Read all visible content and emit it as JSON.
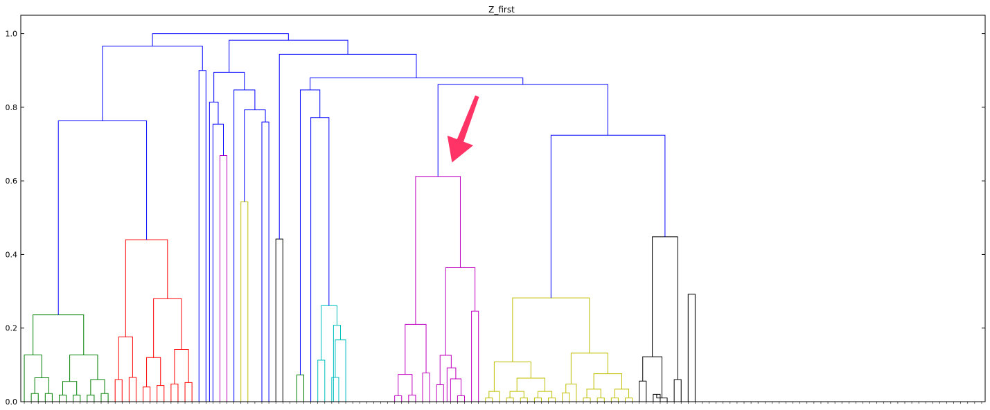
{
  "chart_data": {
    "type": "dendrogram",
    "title": "Z_first",
    "xlabel": "",
    "ylabel": "",
    "ylim": [
      0,
      1.05
    ],
    "yticks": [
      "0.0",
      "0.2",
      "0.4",
      "0.6",
      "0.8",
      "1.0"
    ],
    "grid": false,
    "leaf_count": 138,
    "colors": {
      "blue": "#0000ff",
      "green": "#008000",
      "red": "#ff0000",
      "magenta": "#bf00bf",
      "yellow": "#bfbf00",
      "cyan": "#00bfbf",
      "black": "#000000",
      "arrow": "#ff3366"
    },
    "links": [
      {
        "x": [
          1,
          2
        ],
        "h": [
          0,
          0.022,
          0
        ],
        "c": "green"
      },
      {
        "x": [
          3,
          4
        ],
        "h": [
          0,
          0.022,
          0
        ],
        "c": "green"
      },
      {
        "x": [
          1.5,
          3.5
        ],
        "h": [
          0.022,
          0.065,
          0.022
        ],
        "c": "green"
      },
      {
        "x": [
          0,
          2.5
        ],
        "h": [
          0,
          0.127,
          0.065
        ],
        "c": "green"
      },
      {
        "x": [
          5,
          6
        ],
        "h": [
          0,
          0.018,
          0
        ],
        "c": "green"
      },
      {
        "x": [
          7,
          8
        ],
        "h": [
          0,
          0.018,
          0
        ],
        "c": "green"
      },
      {
        "x": [
          5.5,
          7.5
        ],
        "h": [
          0.018,
          0.055,
          0.018
        ],
        "c": "green"
      },
      {
        "x": [
          9,
          10
        ],
        "h": [
          0,
          0.018,
          0
        ],
        "c": "green"
      },
      {
        "x": [
          11,
          12
        ],
        "h": [
          0,
          0.022,
          0
        ],
        "c": "green"
      },
      {
        "x": [
          9.5,
          11.5
        ],
        "h": [
          0.018,
          0.06,
          0.022
        ],
        "c": "green"
      },
      {
        "x": [
          6.5,
          10.5
        ],
        "h": [
          0.055,
          0.127,
          0.06
        ],
        "c": "green"
      },
      {
        "x": [
          1.25,
          8.5
        ],
        "h": [
          0.127,
          0.236,
          0.127
        ],
        "c": "green"
      },
      {
        "x": [
          13,
          14
        ],
        "h": [
          0,
          0.06,
          0
        ],
        "c": "red"
      },
      {
        "x": [
          15,
          16
        ],
        "h": [
          0,
          0.066,
          0
        ],
        "c": "red"
      },
      {
        "x": [
          13.5,
          15.5
        ],
        "h": [
          0.06,
          0.176,
          0.066
        ],
        "c": "red"
      },
      {
        "x": [
          17,
          18
        ],
        "h": [
          0,
          0.04,
          0
        ],
        "c": "red"
      },
      {
        "x": [
          19,
          20
        ],
        "h": [
          0,
          0.044,
          0
        ],
        "c": "red"
      },
      {
        "x": [
          17.5,
          19.5
        ],
        "h": [
          0.04,
          0.12,
          0.044
        ],
        "c": "red"
      },
      {
        "x": [
          21,
          22
        ],
        "h": [
          0,
          0.048,
          0
        ],
        "c": "red"
      },
      {
        "x": [
          23,
          24
        ],
        "h": [
          0,
          0.052,
          0
        ],
        "c": "red"
      },
      {
        "x": [
          21.5,
          23.5
        ],
        "h": [
          0.048,
          0.142,
          0.052
        ],
        "c": "red"
      },
      {
        "x": [
          18.5,
          22.5
        ],
        "h": [
          0.12,
          0.28,
          0.142
        ],
        "c": "red"
      },
      {
        "x": [
          14.5,
          20.5
        ],
        "h": [
          0.176,
          0.44,
          0.28
        ],
        "c": "red"
      },
      {
        "x": [
          4.875,
          17.5
        ],
        "h": [
          0.236,
          0.763,
          0.44
        ],
        "c": "blue"
      },
      {
        "x": [
          25,
          26
        ],
        "h": [
          0,
          0.9,
          0
        ],
        "c": "blue"
      },
      {
        "x": [
          11.1875,
          25.5
        ],
        "h": [
          0.763,
          0.966,
          0.9
        ],
        "c": "blue"
      },
      {
        "x": [
          28,
          29
        ],
        "h": [
          0,
          0.669,
          0
        ],
        "c": "magenta"
      },
      {
        "x": [
          27,
          28.5
        ],
        "h": [
          0,
          0.754,
          0.669
        ],
        "c": "blue"
      },
      {
        "x": [
          26.5,
          27.75
        ],
        "h": [
          0,
          0.814,
          0.754
        ],
        "c": "blue"
      },
      {
        "x": [
          31,
          32
        ],
        "h": [
          0,
          0.543,
          0
        ],
        "c": "yellow"
      },
      {
        "x": [
          34,
          35
        ],
        "h": [
          0,
          0.76,
          0
        ],
        "c": "blue"
      },
      {
        "x": [
          31.5,
          34.5
        ],
        "h": [
          0.543,
          0.793,
          0.76
        ],
        "c": "blue"
      },
      {
        "x": [
          30,
          33
        ],
        "h": [
          0,
          0.847,
          0.793
        ],
        "c": "blue"
      },
      {
        "x": [
          27.125,
          31.5
        ],
        "h": [
          0.814,
          0.895,
          0.847
        ],
        "c": "blue"
      },
      {
        "x": [
          36,
          37
        ],
        "h": [
          0,
          0.442,
          0
        ],
        "c": "black"
      },
      {
        "x": [
          39,
          40
        ],
        "h": [
          0,
          0.073,
          0
        ],
        "c": "green"
      },
      {
        "x": [
          42,
          43
        ],
        "h": [
          0,
          0.113,
          0
        ],
        "c": "cyan"
      },
      {
        "x": [
          44,
          45
        ],
        "h": [
          0,
          0.066,
          0
        ],
        "c": "cyan"
      },
      {
        "x": [
          46,
          44.5
        ],
        "h": [
          0,
          0.168,
          0.066
        ],
        "c": "cyan"
      },
      {
        "x": [
          44.25,
          45.25
        ],
        "h": [
          0,
          0.208,
          0.168
        ],
        "c": "cyan"
      },
      {
        "x": [
          42.5,
          44.75
        ],
        "h": [
          0.113,
          0.261,
          0.208
        ],
        "c": "cyan"
      },
      {
        "x": [
          41,
          43.6
        ],
        "h": [
          0,
          0.772,
          0.261
        ],
        "c": "blue"
      },
      {
        "x": [
          39.5,
          42.3
        ],
        "h": [
          0.073,
          0.847,
          0.772
        ],
        "c": "blue"
      },
      {
        "x": [
          53,
          54
        ],
        "h": [
          0,
          0.016,
          0
        ],
        "c": "magenta"
      },
      {
        "x": [
          55,
          56
        ],
        "h": [
          0,
          0.018,
          0
        ],
        "c": "magenta"
      },
      {
        "x": [
          53.5,
          55.5
        ],
        "h": [
          0.016,
          0.074,
          0.018
        ],
        "c": "magenta"
      },
      {
        "x": [
          57,
          58
        ],
        "h": [
          0,
          0.078,
          0
        ],
        "c": "magenta"
      },
      {
        "x": [
          54.5,
          57.5
        ],
        "h": [
          0.074,
          0.21,
          0.078
        ],
        "c": "magenta"
      },
      {
        "x": [
          59,
          60
        ],
        "h": [
          0,
          0.046,
          0
        ],
        "c": "magenta"
      },
      {
        "x": [
          62,
          63
        ],
        "h": [
          0,
          0.016,
          0
        ],
        "c": "magenta"
      },
      {
        "x": [
          61,
          62.5
        ],
        "h": [
          0,
          0.062,
          0.016
        ],
        "c": "magenta"
      },
      {
        "x": [
          60.5,
          61.75
        ],
        "h": [
          0,
          0.092,
          0.062
        ],
        "c": "magenta"
      },
      {
        "x": [
          59.5,
          61.1
        ],
        "h": [
          0.046,
          0.126,
          0.092
        ],
        "c": "magenta"
      },
      {
        "x": [
          64,
          65
        ],
        "h": [
          0,
          0.246,
          0
        ],
        "c": "magenta"
      },
      {
        "x": [
          60.3,
          64.5
        ],
        "h": [
          0.126,
          0.364,
          0.246
        ],
        "c": "magenta"
      },
      {
        "x": [
          56,
          62.4
        ],
        "h": [
          0.21,
          0.612,
          0.364
        ],
        "c": "magenta"
      },
      {
        "x": [
          66,
          67
        ],
        "h": [
          0,
          0.01,
          0
        ],
        "c": "yellow"
      },
      {
        "x": [
          66.5,
          68
        ],
        "h": [
          0.01,
          0.028,
          0
        ],
        "c": "yellow"
      },
      {
        "x": [
          69,
          70
        ],
        "h": [
          0,
          0.01,
          0
        ],
        "c": "yellow"
      },
      {
        "x": [
          71,
          72
        ],
        "h": [
          0,
          0.01,
          0
        ],
        "c": "yellow"
      },
      {
        "x": [
          69.5,
          71.5
        ],
        "h": [
          0.01,
          0.028,
          0.01
        ],
        "c": "yellow"
      },
      {
        "x": [
          73,
          74
        ],
        "h": [
          0,
          0.01,
          0
        ],
        "c": "yellow"
      },
      {
        "x": [
          75,
          76
        ],
        "h": [
          0,
          0.01,
          0
        ],
        "c": "yellow"
      },
      {
        "x": [
          73.5,
          75.5
        ],
        "h": [
          0.01,
          0.028,
          0.01
        ],
        "c": "yellow"
      },
      {
        "x": [
          70.5,
          74.5
        ],
        "h": [
          0.028,
          0.064,
          0.028
        ],
        "c": "yellow"
      },
      {
        "x": [
          67.25,
          72.5
        ],
        "h": [
          0.028,
          0.108,
          0.064
        ],
        "c": "yellow"
      },
      {
        "x": [
          77,
          78
        ],
        "h": [
          0,
          0.024,
          0
        ],
        "c": "yellow"
      },
      {
        "x": [
          77.5,
          79
        ],
        "h": [
          0.024,
          0.048,
          0
        ],
        "c": "yellow"
      },
      {
        "x": [
          80,
          81
        ],
        "h": [
          0,
          0.01,
          0
        ],
        "c": "yellow"
      },
      {
        "x": [
          82,
          83
        ],
        "h": [
          0,
          0.01,
          0
        ],
        "c": "yellow"
      },
      {
        "x": [
          80.5,
          82.5
        ],
        "h": [
          0.01,
          0.034,
          0.01
        ],
        "c": "yellow"
      },
      {
        "x": [
          84,
          85
        ],
        "h": [
          0,
          0.01,
          0
        ],
        "c": "yellow"
      },
      {
        "x": [
          86,
          87
        ],
        "h": [
          0,
          0.01,
          0
        ],
        "c": "yellow"
      },
      {
        "x": [
          84.5,
          86.5
        ],
        "h": [
          0.01,
          0.034,
          0.01
        ],
        "c": "yellow"
      },
      {
        "x": [
          81.5,
          85.5
        ],
        "h": [
          0.034,
          0.076,
          0.034
        ],
        "c": "yellow"
      },
      {
        "x": [
          78.25,
          83.5
        ],
        "h": [
          0.048,
          0.132,
          0.076
        ],
        "c": "yellow"
      },
      {
        "x": [
          69.875,
          80.875
        ],
        "h": [
          0.108,
          0.282,
          0.132
        ],
        "c": "yellow"
      },
      {
        "x": [
          88,
          89
        ],
        "h": [
          0,
          0.056,
          0
        ],
        "c": "black"
      },
      {
        "x": [
          90,
          91
        ],
        "h": [
          0,
          0.02,
          0
        ],
        "c": "black"
      },
      {
        "x": [
          90.5,
          92
        ],
        "h": [
          0.02,
          0.01,
          0
        ],
        "c": "black"
      },
      {
        "x": [
          88.5,
          91.25
        ],
        "h": [
          0.056,
          0.122,
          0.01
        ],
        "c": "black"
      },
      {
        "x": [
          93,
          94
        ],
        "h": [
          0,
          0.06,
          0
        ],
        "c": "black"
      },
      {
        "x": [
          95,
          96
        ],
        "h": [
          0,
          0.292,
          0
        ],
        "c": "black"
      },
      {
        "x": [
          89.875,
          93.5
        ],
        "h": [
          0.122,
          0.448,
          0.06
        ],
        "c": "black"
      },
      {
        "x": [
          75.375,
          91.6875
        ],
        "h": [
          0.282,
          0.724,
          0.448
        ],
        "c": "blue"
      },
      {
        "x": [
          59.2,
          83.5
        ],
        "h": [
          0.612,
          0.862,
          0.724
        ],
        "c": "blue"
      },
      {
        "x": [
          40.9,
          71.35
        ],
        "h": [
          0.847,
          0.88,
          0.862
        ],
        "c": "blue"
      },
      {
        "x": [
          36.5,
          56.1
        ],
        "h": [
          0.442,
          0.944,
          0.88
        ],
        "c": "blue"
      },
      {
        "x": [
          29.3125,
          46.3
        ],
        "h": [
          0.895,
          0.982,
          0.944
        ],
        "c": "blue"
      },
      {
        "x": [
          18.34375,
          37.8
        ],
        "h": [
          0.966,
          1.0,
          0.982
        ],
        "c": "blue"
      }
    ],
    "annotation": {
      "type": "arrow",
      "color": "arrow",
      "from_value": [
        64.8,
        0.83
      ],
      "to_value": [
        61.2,
        0.65
      ]
    }
  }
}
